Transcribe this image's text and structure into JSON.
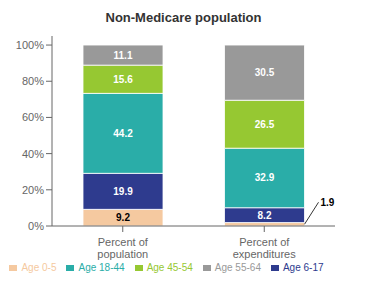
{
  "chart_data": {
    "type": "bar",
    "title": "Non-Medicare population",
    "categories": [
      "Percent of\npopulation",
      "Percent of\nexpenditures"
    ],
    "stacked": true,
    "series": [
      {
        "name": "Age 0-5",
        "color": "#f5c9a0",
        "values": [
          9.2,
          1.9
        ]
      },
      {
        "name": "Age 6-17",
        "color": "#2e3b8e",
        "values": [
          19.9,
          8.2
        ]
      },
      {
        "name": "Age 18-44",
        "color": "#2aada8",
        "values": [
          44.2,
          32.9
        ]
      },
      {
        "name": "Age 45-54",
        "color": "#96c832",
        "values": [
          15.6,
          26.5
        ]
      },
      {
        "name": "Age 55-64",
        "color": "#999999",
        "values": [
          11.1,
          30.5
        ]
      }
    ],
    "ylim": [
      0,
      105
    ],
    "yticks": [
      {
        "value": 0,
        "label": "0%"
      },
      {
        "value": 20,
        "label": "20%"
      },
      {
        "value": 40,
        "label": "40%"
      },
      {
        "value": 60,
        "label": "60%"
      },
      {
        "value": 80,
        "label": "80%"
      },
      {
        "value": 100,
        "label": "100%"
      }
    ],
    "grid": false,
    "legend": "bottom",
    "data_labels": true
  }
}
